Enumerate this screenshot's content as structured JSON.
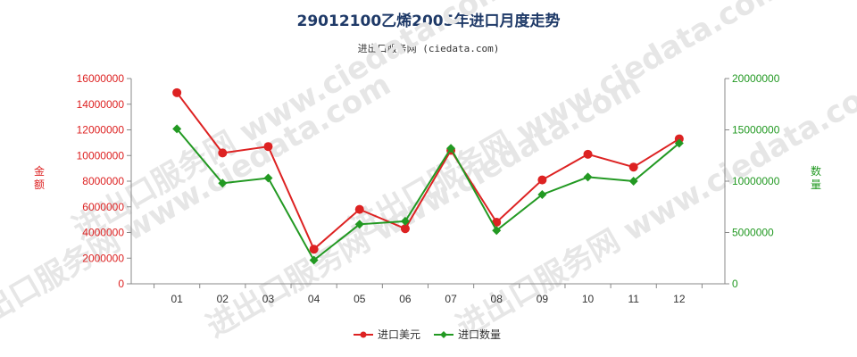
{
  "title": "29012100乙烯2005年进口月度走势",
  "subtitle": "进出口服务网 (ciedata.com)",
  "watermark": "进出口服务网 www.ciedata.com",
  "colors": {
    "value": "#dd2222",
    "quantity": "#229922",
    "title": "#1f3a68"
  },
  "chart_data": {
    "type": "line",
    "categories": [
      "01",
      "02",
      "03",
      "04",
      "05",
      "06",
      "07",
      "08",
      "09",
      "10",
      "11",
      "12"
    ],
    "ylabel_left": "金额",
    "ylabel_right": "数量",
    "ylim_left": [
      0,
      16000000
    ],
    "ylim_right": [
      0,
      20000000
    ],
    "yticks_left": [
      "0",
      "2000000",
      "4000000",
      "6000000",
      "8000000",
      "10000000",
      "12000000",
      "14000000",
      "16000000"
    ],
    "yticks_right": [
      "0",
      "5000000",
      "10000000",
      "15000000",
      "20000000"
    ],
    "legend_position": "bottom",
    "grid": false,
    "series": [
      {
        "name": "进口美元",
        "axis": "left",
        "color": "#dd2222",
        "values": [
          14900000,
          10200000,
          10700000,
          2700000,
          5800000,
          4300000,
          10400000,
          4800000,
          8100000,
          10100000,
          9100000,
          11300000
        ]
      },
      {
        "name": "进口数量",
        "axis": "right",
        "color": "#229922",
        "values": [
          15100000,
          9800000,
          10300000,
          2300000,
          5800000,
          6100000,
          13200000,
          5200000,
          8700000,
          10400000,
          10000000,
          13700000
        ]
      }
    ]
  }
}
